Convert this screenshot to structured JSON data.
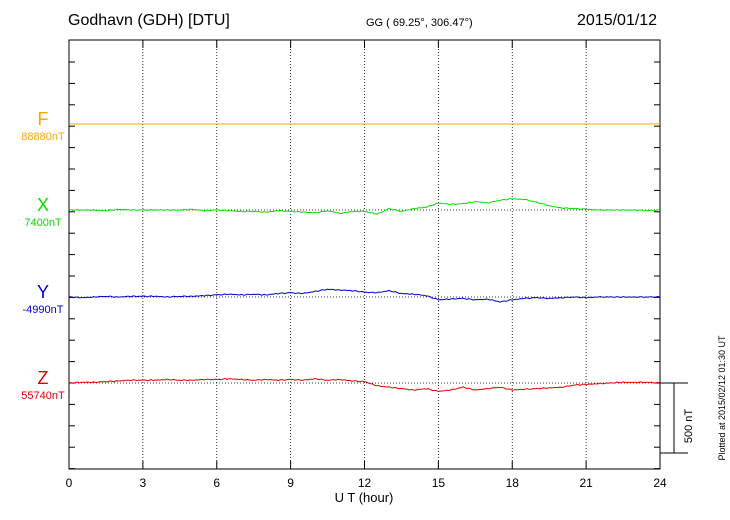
{
  "header": {
    "station": "Godhavn (GDH)  [DTU]",
    "coords": "GG ( 69.25°, 306.47°)",
    "date": "2015/01/12"
  },
  "plotted_note": "Plotted at 2015/02/12 01:30 UT",
  "scale_label": "500 nT",
  "colors": {
    "F": "#f5a800",
    "X": "#00e000",
    "Y": "#0000cc",
    "Z": "#e00000"
  },
  "components": [
    {
      "id": "F",
      "label": "F",
      "baseline": "88880nT"
    },
    {
      "id": "X",
      "label": "X",
      "baseline": "7400nT"
    },
    {
      "id": "Y",
      "label": "Y",
      "baseline": "-4990nT"
    },
    {
      "id": "Z",
      "label": "Z",
      "baseline": "55740nT"
    }
  ],
  "chart_data": {
    "type": "line",
    "xlabel": "U T (hour)",
    "xlim": [
      0,
      24
    ],
    "xticks": [
      "0",
      "3",
      "6",
      "9",
      "12",
      "15",
      "18",
      "21",
      "24"
    ],
    "grid": true,
    "scale_bar_nT": 500,
    "series": [
      {
        "name": "F",
        "baseline_nT": 88880,
        "x": [
          0,
          24
        ],
        "values": [
          88880,
          88880
        ]
      },
      {
        "name": "X",
        "baseline_nT": 7400,
        "x": [
          0,
          0.5,
          1,
          1.5,
          2,
          2.5,
          3,
          3.5,
          4,
          4.5,
          5,
          5.5,
          6,
          6.5,
          7,
          7.5,
          8,
          8.5,
          9,
          9.5,
          10,
          10.5,
          11,
          11.5,
          12,
          12.5,
          13,
          13.5,
          14,
          14.5,
          15,
          15.5,
          16,
          16.5,
          17,
          17.5,
          18,
          18.5,
          19,
          19.5,
          20,
          20.5,
          21,
          21.5,
          22,
          22.5,
          23,
          23.5,
          24
        ],
        "values": [
          7400,
          7400,
          7400,
          7395,
          7405,
          7400,
          7400,
          7400,
          7400,
          7400,
          7405,
          7395,
          7400,
          7395,
          7390,
          7390,
          7385,
          7395,
          7390,
          7385,
          7380,
          7395,
          7375,
          7390,
          7390,
          7370,
          7410,
          7390,
          7410,
          7420,
          7450,
          7440,
          7445,
          7460,
          7450,
          7470,
          7480,
          7475,
          7455,
          7430,
          7415,
          7410,
          7405,
          7400,
          7400,
          7400,
          7400,
          7395,
          7400
        ]
      },
      {
        "name": "Y",
        "baseline_nT": -4990,
        "x": [
          0,
          0.5,
          1,
          1.5,
          2,
          2.5,
          3,
          3.5,
          4,
          4.5,
          5,
          5.5,
          6,
          6.5,
          7,
          7.5,
          8,
          8.5,
          9,
          9.5,
          10,
          10.5,
          11,
          11.5,
          12,
          12.5,
          13,
          13.5,
          14,
          14.5,
          15,
          15.5,
          16,
          16.5,
          17,
          17.5,
          18,
          18.5,
          19,
          19.5,
          20,
          20.5,
          21,
          21.5,
          22,
          22.5,
          23,
          23.5,
          24
        ],
        "values": [
          -4990,
          -4995,
          -4990,
          -4985,
          -4990,
          -4985,
          -4985,
          -4985,
          -4990,
          -4985,
          -4985,
          -4980,
          -4975,
          -4970,
          -4975,
          -4970,
          -4975,
          -4965,
          -4960,
          -4965,
          -4950,
          -4935,
          -4940,
          -4945,
          -4955,
          -4960,
          -4945,
          -4965,
          -4970,
          -4980,
          -5010,
          -5005,
          -5000,
          -5010,
          -5005,
          -5025,
          -5010,
          -5000,
          -4995,
          -5000,
          -4995,
          -4990,
          -4995,
          -4990,
          -4990,
          -4990,
          -4990,
          -4990,
          -4990
        ]
      },
      {
        "name": "Z",
        "baseline_nT": 55740,
        "x": [
          0,
          0.5,
          1,
          1.5,
          2,
          2.5,
          3,
          3.5,
          4,
          4.5,
          5,
          5.5,
          6,
          6.5,
          7,
          7.5,
          8,
          8.5,
          9,
          9.5,
          10,
          10.5,
          11,
          11.5,
          12,
          12.5,
          13,
          13.5,
          14,
          14.5,
          15,
          15.5,
          16,
          16.5,
          17,
          17.5,
          18,
          18.5,
          19,
          19.5,
          20,
          20.5,
          21,
          21.5,
          22,
          22.5,
          23,
          23.5,
          24
        ],
        "values": [
          55740,
          55745,
          55745,
          55750,
          55755,
          55760,
          55760,
          55760,
          55765,
          55760,
          55760,
          55765,
          55765,
          55770,
          55765,
          55760,
          55765,
          55760,
          55765,
          55760,
          55770,
          55760,
          55765,
          55755,
          55750,
          55720,
          55710,
          55700,
          55690,
          55700,
          55680,
          55690,
          55710,
          55690,
          55700,
          55710,
          55690,
          55695,
          55700,
          55705,
          55710,
          55725,
          55730,
          55735,
          55740,
          55745,
          55745,
          55745,
          55740
        ]
      }
    ]
  }
}
